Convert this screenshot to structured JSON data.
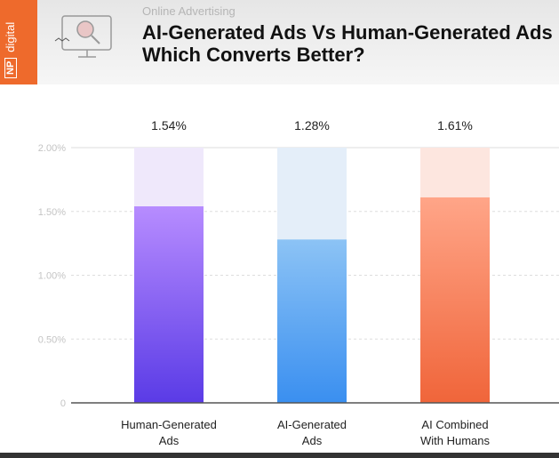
{
  "header": {
    "brand": "digital",
    "brand_box": "NP",
    "subtitle": "Online Advertising",
    "title_line1": "AI-Generated Ads Vs Human-Generated Ads",
    "title_line2": "Which Converts Better?"
  },
  "chart_data": {
    "type": "bar",
    "title": "AI-Generated Ads Vs Human-Generated Ads Which Converts Better?",
    "categories": [
      [
        "Human-Generated",
        "Ads"
      ],
      [
        "AI-Generated",
        "Ads"
      ],
      [
        "AI Combined",
        "With Humans"
      ]
    ],
    "values": [
      1.54,
      1.28,
      1.61
    ],
    "value_labels": [
      "1.54%",
      "1.28%",
      "1.61%"
    ],
    "ylim": [
      0,
      2.0
    ],
    "yticks": [
      0,
      0.5,
      1.0,
      1.5,
      2.0
    ],
    "ytick_labels": [
      "0",
      "0.50%",
      "1.00%",
      "1.50%",
      "2.00%"
    ],
    "grid": true,
    "colors": [
      [
        "#b78cff",
        "#5a3be6",
        "#efe8fb"
      ],
      [
        "#8cc3f5",
        "#3a8ff0",
        "#e4eef9"
      ],
      [
        "#ffa588",
        "#f0653a",
        "#fde6df"
      ]
    ]
  }
}
